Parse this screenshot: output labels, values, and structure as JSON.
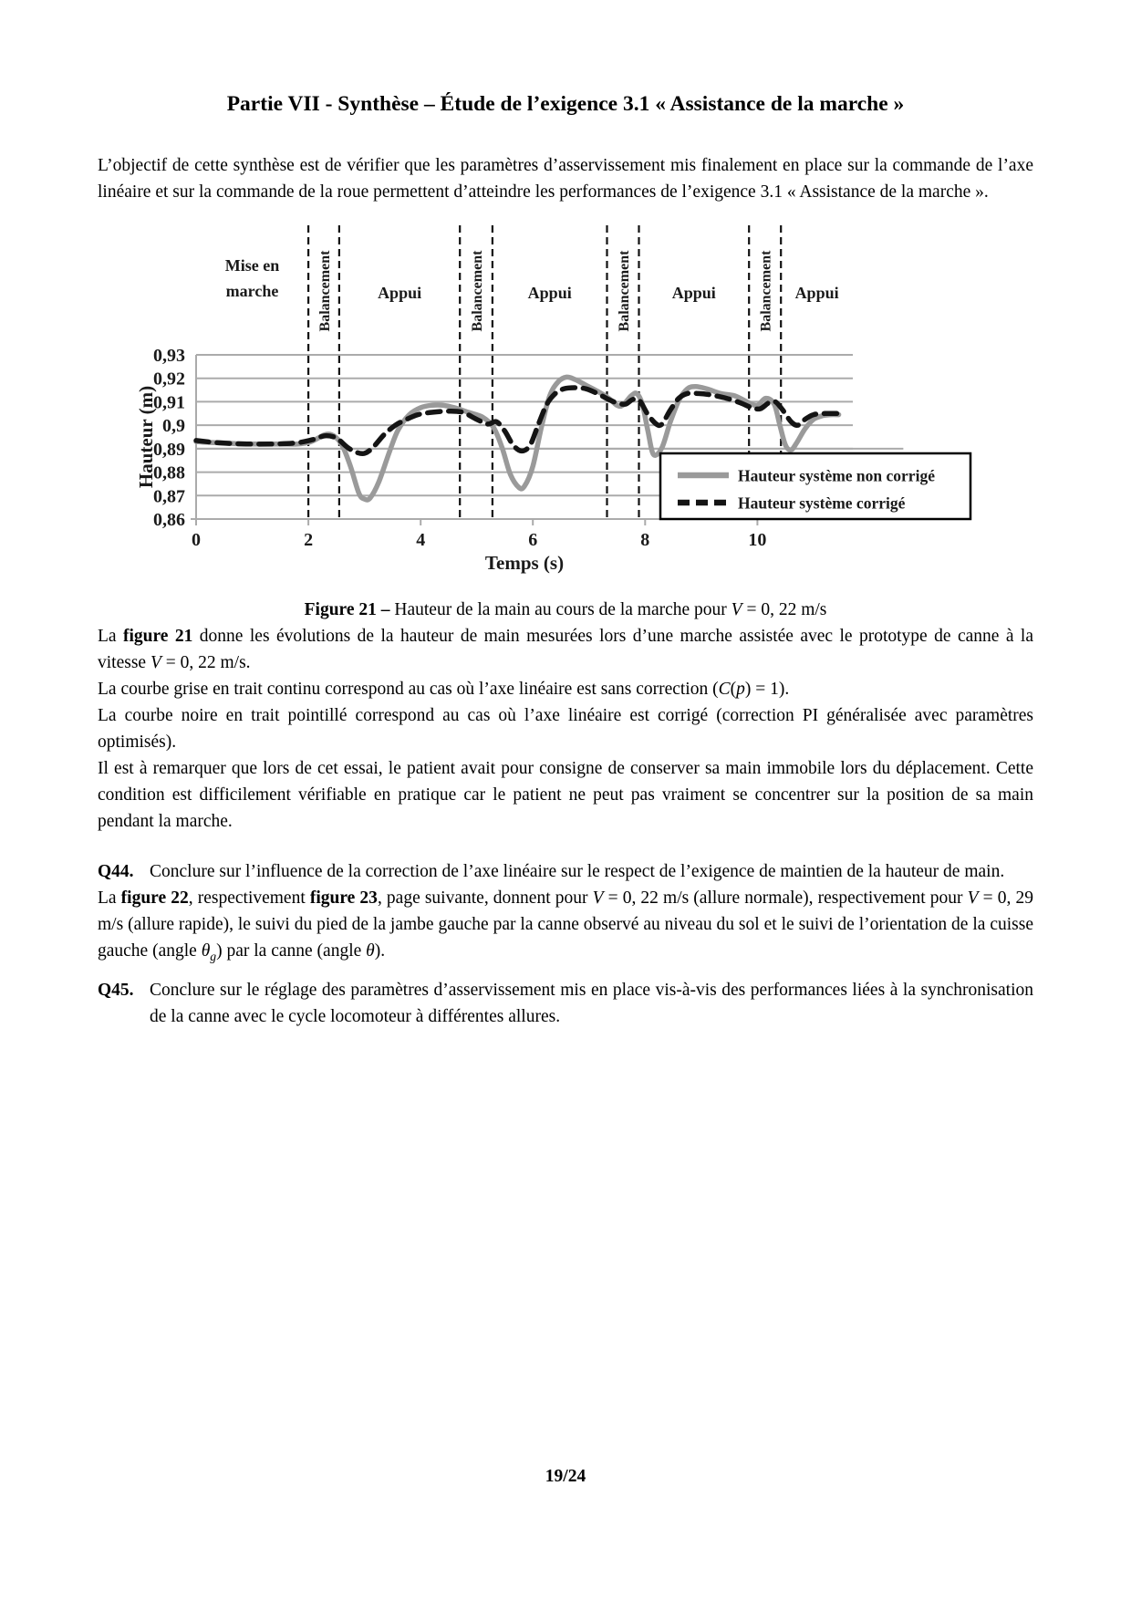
{
  "page": {
    "number": "19/24"
  },
  "title": "Partie VII - Synthèse – Étude de l’exigence 3.1 « Assistance de la marche »",
  "body": {
    "intro": [
      {
        "t": "L’objectif de cette synthèse est de vérifier que les paramètres d’asservissement mis finalement en place sur la commande de l’axe linéaire et sur la commande de la roue permettent d’atteindre les performances de l’exigence 3.1 « Assistance de la marche »."
      }
    ],
    "p_fig21": [
      {
        "t": "La "
      },
      {
        "t": "figure 21",
        "b": 1
      },
      {
        "t": " donne les évolutions de la hauteur de main mesurées lors d’une marche assistée avec le prototype de canne à la vitesse "
      },
      {
        "t": "V",
        "i": 1
      },
      {
        "t": " = 0, 22 m/s."
      }
    ],
    "p_grise": [
      {
        "t": "La courbe grise en trait continu correspond au cas où l’axe linéaire est sans correction ("
      },
      {
        "t": "C",
        "i": 1
      },
      {
        "t": "("
      },
      {
        "t": "p",
        "i": 1
      },
      {
        "t": ") = 1)."
      }
    ],
    "p_noire": [
      {
        "t": "La courbe noire en trait pointillé correspond au cas où l’axe linéaire est corrigé (correction PI généralisée avec paramètres optimisés)."
      }
    ],
    "p_remarque": [
      {
        "t": "Il est à remarquer que lors de cet essai, le patient avait pour consigne de conserver sa main immobile lors du déplacement. Cette condition est difficilement vérifiable en pratique car le patient ne peut pas vraiment se concentrer sur la position de sa main pendant la marche."
      }
    ],
    "p_fig2223": [
      {
        "t": "La "
      },
      {
        "t": "figure 22",
        "b": 1
      },
      {
        "t": ", respectivement "
      },
      {
        "t": "figure 23",
        "b": 1
      },
      {
        "t": ", page suivante, donnent pour "
      },
      {
        "t": "V",
        "i": 1
      },
      {
        "t": " = 0, 22 m/s (allure normale), respectivement pour "
      },
      {
        "t": "V",
        "i": 1
      },
      {
        "t": " = 0, 29 m/s (allure rapide), le suivi du pied de la jambe gauche par la canne observé au niveau du sol et le suivi de l’orientation de la cuisse gauche (angle "
      },
      {
        "t": "θ",
        "i": 1
      },
      {
        "t": "g",
        "i": 1,
        "sub": 1
      },
      {
        "t": ") par la canne (angle "
      },
      {
        "t": "θ",
        "i": 1
      },
      {
        "t": ")."
      }
    ]
  },
  "questions": [
    {
      "label": "Q44.",
      "runs": [
        {
          "t": "Conclure sur l’influence de la correction de l’axe linéaire sur le respect de l’exigence de maintien de la hauteur de main."
        }
      ]
    },
    {
      "label": "Q45.",
      "runs": [
        {
          "t": "Conclure sur le réglage des paramètres d’asservissement mis en place vis-à-vis des performances liées à la synchronisation de la canne avec le cycle locomoteur à différentes allures."
        }
      ]
    }
  ],
  "figure": {
    "caption_runs": [
      {
        "t": "Figure 21 –  ",
        "b": 1
      },
      {
        "t": "Hauteur de la main au cours de la marche pour "
      },
      {
        "t": "V",
        "i": 1
      },
      {
        "t": " = 0, 22 m/s"
      }
    ]
  },
  "chart_data": {
    "type": "line",
    "xlabel": "Temps (s)",
    "ylabel": "Hauteur  (m)",
    "xlim": [
      0,
      11.7
    ],
    "ylim": [
      0.86,
      0.93
    ],
    "grid": true,
    "grid_color": "#ababab",
    "xticks": [
      {
        "v": 0,
        "label": "0"
      },
      {
        "v": 2,
        "label": "2"
      },
      {
        "v": 4,
        "label": "4"
      },
      {
        "v": 6,
        "label": "6"
      },
      {
        "v": 8,
        "label": "8"
      },
      {
        "v": 10,
        "label": "10"
      }
    ],
    "yticks": [
      {
        "v": 0.93,
        "label": "0,93"
      },
      {
        "v": 0.92,
        "label": "0,92"
      },
      {
        "v": 0.91,
        "label": "0,91"
      },
      {
        "v": 0.9,
        "label": "0,9"
      },
      {
        "v": 0.89,
        "label": "0,89"
      },
      {
        "v": 0.88,
        "label": "0,88"
      },
      {
        "v": 0.87,
        "label": "0,87"
      },
      {
        "v": 0.86,
        "label": "0,86"
      }
    ],
    "ref_line": {
      "y": 0.89,
      "x_end": 12.6
    },
    "phases": [
      {
        "lines": [
          "Mise en",
          "marche"
        ],
        "from": 0,
        "to": 2.0,
        "vertical": false
      },
      {
        "lines": [
          "Balancement"
        ],
        "from": 2.0,
        "to": 2.55,
        "vertical": true
      },
      {
        "lines": [
          "Appui"
        ],
        "from": 2.55,
        "to": 4.7,
        "vertical": false
      },
      {
        "lines": [
          "Balancement"
        ],
        "from": 4.7,
        "to": 5.28,
        "vertical": true
      },
      {
        "lines": [
          "Appui"
        ],
        "from": 5.28,
        "to": 7.32,
        "vertical": false
      },
      {
        "lines": [
          "Balancement"
        ],
        "from": 7.32,
        "to": 7.89,
        "vertical": true
      },
      {
        "lines": [
          "Appui"
        ],
        "from": 7.89,
        "to": 9.85,
        "vertical": false
      },
      {
        "lines": [
          "Balancement"
        ],
        "from": 9.85,
        "to": 10.42,
        "vertical": true
      },
      {
        "lines": [
          "Appui"
        ],
        "from": 10.42,
        "to": 11.7,
        "vertical": false
      }
    ],
    "legend_position": "bottom-right",
    "series": [
      {
        "name": "Hauteur système non corrigé",
        "color": "#9a9a9a",
        "style": "solid",
        "points": [
          [
            0,
            0.893
          ],
          [
            0.4,
            0.8925
          ],
          [
            0.9,
            0.892
          ],
          [
            1.4,
            0.892
          ],
          [
            1.8,
            0.892
          ],
          [
            2.05,
            0.893
          ],
          [
            2.3,
            0.896
          ],
          [
            2.45,
            0.8955
          ],
          [
            2.6,
            0.8915
          ],
          [
            2.75,
            0.8825
          ],
          [
            2.9,
            0.871
          ],
          [
            3.0,
            0.8685
          ],
          [
            3.1,
            0.869
          ],
          [
            3.25,
            0.8755
          ],
          [
            3.45,
            0.889
          ],
          [
            3.6,
            0.898
          ],
          [
            3.8,
            0.9045
          ],
          [
            4.0,
            0.9075
          ],
          [
            4.2,
            0.9085
          ],
          [
            4.4,
            0.9085
          ],
          [
            4.6,
            0.9075
          ],
          [
            4.85,
            0.9055
          ],
          [
            5.1,
            0.9035
          ],
          [
            5.3,
            0.899
          ],
          [
            5.45,
            0.8905
          ],
          [
            5.6,
            0.879
          ],
          [
            5.75,
            0.8735
          ],
          [
            5.85,
            0.874
          ],
          [
            6.0,
            0.8825
          ],
          [
            6.15,
            0.899
          ],
          [
            6.3,
            0.9125
          ],
          [
            6.45,
            0.9185
          ],
          [
            6.6,
            0.9205
          ],
          [
            6.75,
            0.9195
          ],
          [
            6.95,
            0.917
          ],
          [
            7.15,
            0.9145
          ],
          [
            7.35,
            0.9115
          ],
          [
            7.5,
            0.9085
          ],
          [
            7.6,
            0.9085
          ],
          [
            7.75,
            0.9125
          ],
          [
            7.85,
            0.9135
          ],
          [
            7.95,
            0.909
          ],
          [
            8.05,
            0.8975
          ],
          [
            8.15,
            0.8875
          ],
          [
            8.3,
            0.8905
          ],
          [
            8.45,
            0.9015
          ],
          [
            8.6,
            0.9105
          ],
          [
            8.75,
            0.9155
          ],
          [
            8.9,
            0.9165
          ],
          [
            9.1,
            0.9155
          ],
          [
            9.35,
            0.9135
          ],
          [
            9.6,
            0.9125
          ],
          [
            9.85,
            0.9095
          ],
          [
            10.0,
            0.9085
          ],
          [
            10.15,
            0.9115
          ],
          [
            10.3,
            0.909
          ],
          [
            10.4,
            0.9
          ],
          [
            10.5,
            0.8915
          ],
          [
            10.6,
            0.8895
          ],
          [
            10.7,
            0.8925
          ],
          [
            10.85,
            0.8985
          ],
          [
            11.0,
            0.9025
          ],
          [
            11.15,
            0.904
          ],
          [
            11.3,
            0.9045
          ],
          [
            11.45,
            0.9045
          ]
        ]
      },
      {
        "name": "Hauteur système  corrigé",
        "color": "#141414",
        "style": "dashed",
        "points": [
          [
            0,
            0.8935
          ],
          [
            0.4,
            0.8925
          ],
          [
            0.9,
            0.892
          ],
          [
            1.4,
            0.892
          ],
          [
            1.8,
            0.8925
          ],
          [
            2.1,
            0.894
          ],
          [
            2.3,
            0.8955
          ],
          [
            2.5,
            0.8945
          ],
          [
            2.7,
            0.8905
          ],
          [
            2.85,
            0.8885
          ],
          [
            3.0,
            0.888
          ],
          [
            3.15,
            0.8905
          ],
          [
            3.35,
            0.896
          ],
          [
            3.55,
            0.9
          ],
          [
            3.75,
            0.9025
          ],
          [
            3.95,
            0.9045
          ],
          [
            4.2,
            0.9055
          ],
          [
            4.5,
            0.906
          ],
          [
            4.75,
            0.9055
          ],
          [
            5.0,
            0.9025
          ],
          [
            5.2,
            0.9005
          ],
          [
            5.35,
            0.9015
          ],
          [
            5.5,
            0.8975
          ],
          [
            5.65,
            0.8915
          ],
          [
            5.8,
            0.889
          ],
          [
            5.95,
            0.8915
          ],
          [
            6.1,
            0.9005
          ],
          [
            6.25,
            0.909
          ],
          [
            6.4,
            0.9135
          ],
          [
            6.55,
            0.9155
          ],
          [
            6.75,
            0.916
          ],
          [
            6.95,
            0.9155
          ],
          [
            7.15,
            0.9135
          ],
          [
            7.35,
            0.911
          ],
          [
            7.5,
            0.9095
          ],
          [
            7.65,
            0.909
          ],
          [
            7.78,
            0.911
          ],
          [
            7.9,
            0.9105
          ],
          [
            8.05,
            0.9045
          ],
          [
            8.2,
            0.9005
          ],
          [
            8.3,
            0.9005
          ],
          [
            8.45,
            0.9065
          ],
          [
            8.6,
            0.9115
          ],
          [
            8.75,
            0.9135
          ],
          [
            8.95,
            0.9135
          ],
          [
            9.15,
            0.913
          ],
          [
            9.45,
            0.9115
          ],
          [
            9.7,
            0.9095
          ],
          [
            9.9,
            0.9075
          ],
          [
            10.05,
            0.907
          ],
          [
            10.2,
            0.9095
          ],
          [
            10.32,
            0.91
          ],
          [
            10.45,
            0.9065
          ],
          [
            10.6,
            0.9015
          ],
          [
            10.72,
            0.9
          ],
          [
            10.85,
            0.9025
          ],
          [
            11.0,
            0.9045
          ],
          [
            11.2,
            0.905
          ],
          [
            11.4,
            0.905
          ],
          [
            11.55,
            0.905
          ]
        ]
      }
    ]
  }
}
